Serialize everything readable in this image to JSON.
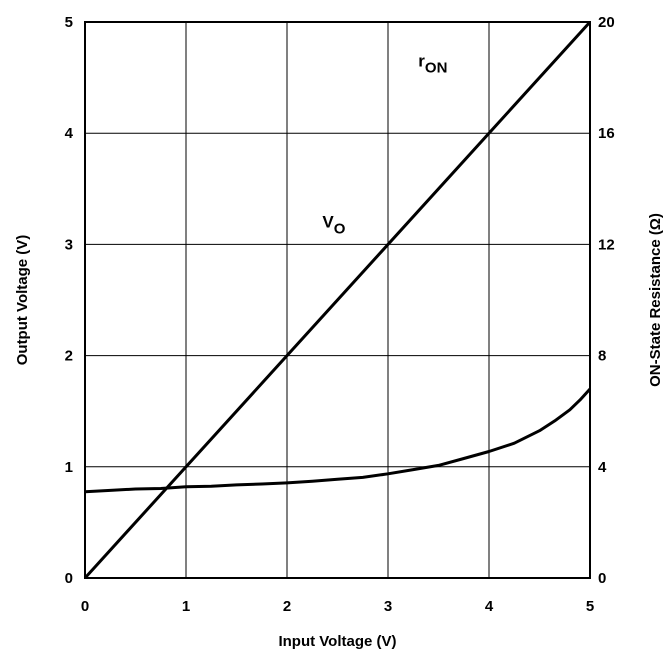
{
  "chart_data": {
    "type": "line",
    "xlabel": "Input Voltage (V)",
    "ylabel": "Output Voltage (V)",
    "y2label": "ON-State Resistance (Ω)",
    "xlim": [
      0,
      5
    ],
    "ylim": [
      0,
      5
    ],
    "y2lim": [
      0,
      20
    ],
    "grid": true,
    "x_ticks": [
      "0",
      "1",
      "2",
      "3",
      "4",
      "5"
    ],
    "y_ticks": [
      "0",
      "1",
      "2",
      "3",
      "4",
      "5"
    ],
    "y2_ticks": [
      "0",
      "4",
      "8",
      "12",
      "16",
      "20"
    ],
    "series": [
      {
        "name": "VO",
        "label_main": "V",
        "label_sub": "O",
        "axis": "left",
        "x": [
          0,
          5
        ],
        "y": [
          0,
          5
        ]
      },
      {
        "name": "rON",
        "label_main": "r",
        "label_sub": "ON",
        "axis": "right",
        "x": [
          0,
          0.25,
          0.5,
          0.75,
          1.0,
          1.25,
          1.5,
          1.75,
          2.0,
          2.25,
          2.5,
          2.75,
          3.0,
          3.25,
          3.5,
          3.75,
          4.0,
          4.25,
          4.5,
          4.65,
          4.8,
          4.9,
          5.0
        ],
        "y": [
          3.1,
          3.15,
          3.2,
          3.22,
          3.28,
          3.3,
          3.35,
          3.38,
          3.42,
          3.48,
          3.55,
          3.62,
          3.75,
          3.9,
          4.05,
          4.3,
          4.55,
          4.85,
          5.3,
          5.65,
          6.05,
          6.4,
          6.8
        ]
      }
    ],
    "series_label_positions": [
      {
        "name": "VO",
        "x": 2.35,
        "y": 3.15
      },
      {
        "name": "rON",
        "x": 3.3,
        "y": 4.6
      }
    ]
  }
}
